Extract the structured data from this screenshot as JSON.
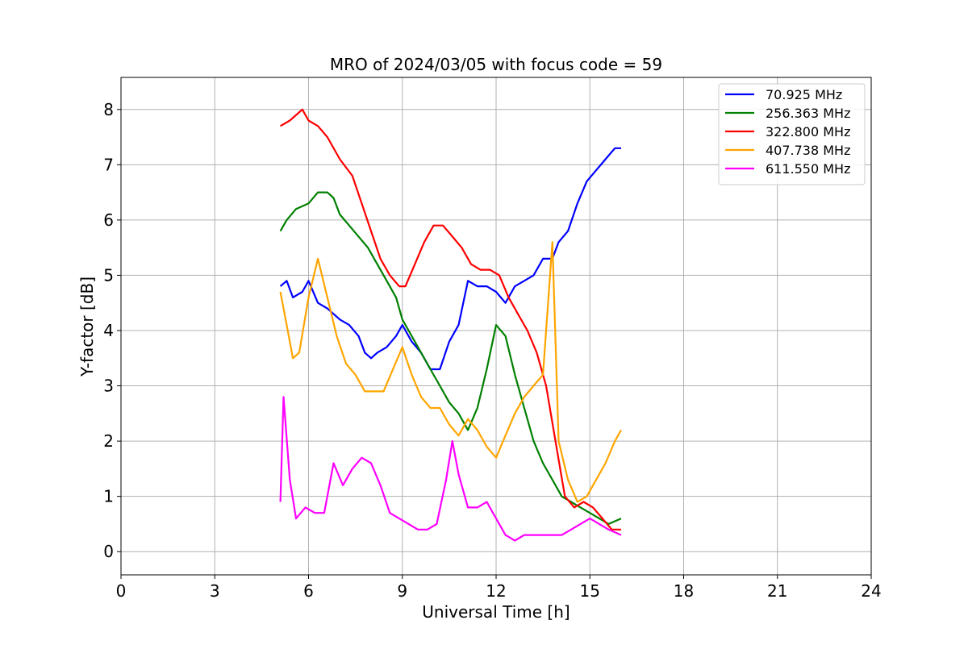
{
  "chart_data": {
    "type": "line",
    "title": "MRO of 2024/03/05 with focus code = 59",
    "xlabel": "Universal Time [h]",
    "ylabel": "Y-factor [dB]",
    "xlim": [
      0,
      24
    ],
    "ylim": [
      -0.42,
      8.58
    ],
    "xticks": [
      0,
      3,
      6,
      9,
      12,
      15,
      18,
      21,
      24
    ],
    "yticks": [
      0,
      1,
      2,
      3,
      4,
      5,
      6,
      7,
      8
    ],
    "grid": true,
    "legend_position": "top-right",
    "series": [
      {
        "name": "  70.925 MHz",
        "color": "#0000ff",
        "x": [
          5.1,
          5.3,
          5.5,
          5.8,
          6.0,
          6.3,
          6.6,
          7.0,
          7.3,
          7.6,
          7.8,
          8.0,
          8.2,
          8.5,
          8.8,
          9.0,
          9.3,
          9.6,
          9.9,
          10.2,
          10.5,
          10.8,
          11.1,
          11.4,
          11.7,
          12.0,
          12.3,
          12.6,
          12.9,
          13.2,
          13.5,
          13.8,
          14.0,
          14.3,
          14.6,
          14.9,
          15.2,
          15.5,
          15.8,
          16.0
        ],
        "y": [
          4.8,
          4.9,
          4.6,
          4.7,
          4.9,
          4.5,
          4.4,
          4.2,
          4.1,
          3.9,
          3.6,
          3.5,
          3.6,
          3.7,
          3.9,
          4.1,
          3.8,
          3.6,
          3.3,
          3.3,
          3.8,
          4.1,
          4.9,
          4.8,
          4.8,
          4.7,
          4.5,
          4.8,
          4.9,
          5.0,
          5.3,
          5.3,
          5.6,
          5.8,
          6.3,
          6.7,
          6.9,
          7.1,
          7.3,
          7.3
        ]
      },
      {
        "name": "256.363 MHz",
        "color": "#008000",
        "x": [
          5.1,
          5.3,
          5.6,
          6.0,
          6.3,
          6.6,
          6.8,
          7.0,
          7.3,
          7.6,
          7.9,
          8.2,
          8.5,
          8.8,
          9.0,
          9.3,
          9.6,
          9.9,
          10.2,
          10.5,
          10.8,
          11.1,
          11.4,
          11.7,
          12.0,
          12.3,
          12.6,
          12.9,
          13.2,
          13.5,
          13.8,
          14.1,
          14.4,
          14.7,
          15.0,
          15.3,
          15.6,
          16.0
        ],
        "y": [
          5.8,
          6.0,
          6.2,
          6.3,
          6.5,
          6.5,
          6.4,
          6.1,
          5.9,
          5.7,
          5.5,
          5.2,
          4.9,
          4.6,
          4.2,
          3.9,
          3.6,
          3.3,
          3.0,
          2.7,
          2.5,
          2.2,
          2.6,
          3.3,
          4.1,
          3.9,
          3.2,
          2.6,
          2.0,
          1.6,
          1.3,
          1.0,
          0.9,
          0.8,
          0.7,
          0.6,
          0.5,
          0.6
        ]
      },
      {
        "name": "322.800 MHz",
        "color": "#ff0000",
        "x": [
          5.1,
          5.4,
          5.8,
          6.0,
          6.3,
          6.6,
          7.0,
          7.4,
          7.7,
          8.0,
          8.3,
          8.6,
          8.9,
          9.1,
          9.4,
          9.7,
          10.0,
          10.3,
          10.6,
          10.9,
          11.2,
          11.5,
          11.8,
          12.1,
          12.4,
          12.7,
          13.0,
          13.3,
          13.6,
          13.9,
          14.2,
          14.5,
          14.8,
          15.1,
          15.4,
          15.7,
          16.0
        ],
        "y": [
          7.7,
          7.8,
          8.0,
          7.8,
          7.7,
          7.5,
          7.1,
          6.8,
          6.3,
          5.8,
          5.3,
          5.0,
          4.8,
          4.8,
          5.2,
          5.6,
          5.9,
          5.9,
          5.7,
          5.5,
          5.2,
          5.1,
          5.1,
          5.0,
          4.6,
          4.3,
          4.0,
          3.6,
          3.0,
          2.0,
          1.0,
          0.8,
          0.9,
          0.8,
          0.6,
          0.4,
          0.4
        ]
      },
      {
        "name": "407.738 MHz",
        "color": "#ffa500",
        "x": [
          5.1,
          5.3,
          5.5,
          5.7,
          6.0,
          6.3,
          6.6,
          6.9,
          7.2,
          7.5,
          7.8,
          8.1,
          8.4,
          8.7,
          9.0,
          9.3,
          9.6,
          9.9,
          10.2,
          10.5,
          10.8,
          11.1,
          11.4,
          11.7,
          12.0,
          12.3,
          12.6,
          12.9,
          13.2,
          13.5,
          13.8,
          14.0,
          14.3,
          14.6,
          14.9,
          15.2,
          15.5,
          15.8,
          16.0
        ],
        "y": [
          4.7,
          4.1,
          3.5,
          3.6,
          4.6,
          5.3,
          4.6,
          3.9,
          3.4,
          3.2,
          2.9,
          2.9,
          2.9,
          3.3,
          3.7,
          3.2,
          2.8,
          2.6,
          2.6,
          2.3,
          2.1,
          2.4,
          2.2,
          1.9,
          1.7,
          2.1,
          2.5,
          2.8,
          3.0,
          3.2,
          5.6,
          2.0,
          1.3,
          0.9,
          1.0,
          1.3,
          1.6,
          2.0,
          2.2
        ]
      },
      {
        "name": "611.550 MHz",
        "color": "#ff00ff",
        "x": [
          5.1,
          5.2,
          5.4,
          5.6,
          5.9,
          6.2,
          6.5,
          6.8,
          7.1,
          7.4,
          7.7,
          8.0,
          8.3,
          8.6,
          8.9,
          9.2,
          9.5,
          9.8,
          10.1,
          10.4,
          10.6,
          10.8,
          11.1,
          11.4,
          11.7,
          12.0,
          12.3,
          12.6,
          12.9,
          13.2,
          13.5,
          13.8,
          14.1,
          14.4,
          14.7,
          15.0,
          15.3,
          15.6,
          16.0
        ],
        "y": [
          0.9,
          2.8,
          1.3,
          0.6,
          0.8,
          0.7,
          0.7,
          1.6,
          1.2,
          1.5,
          1.7,
          1.6,
          1.2,
          0.7,
          0.6,
          0.5,
          0.4,
          0.4,
          0.5,
          1.3,
          2.0,
          1.4,
          0.8,
          0.8,
          0.9,
          0.6,
          0.3,
          0.2,
          0.3,
          0.3,
          0.3,
          0.3,
          0.3,
          0.4,
          0.5,
          0.6,
          0.5,
          0.4,
          0.3
        ]
      }
    ]
  }
}
